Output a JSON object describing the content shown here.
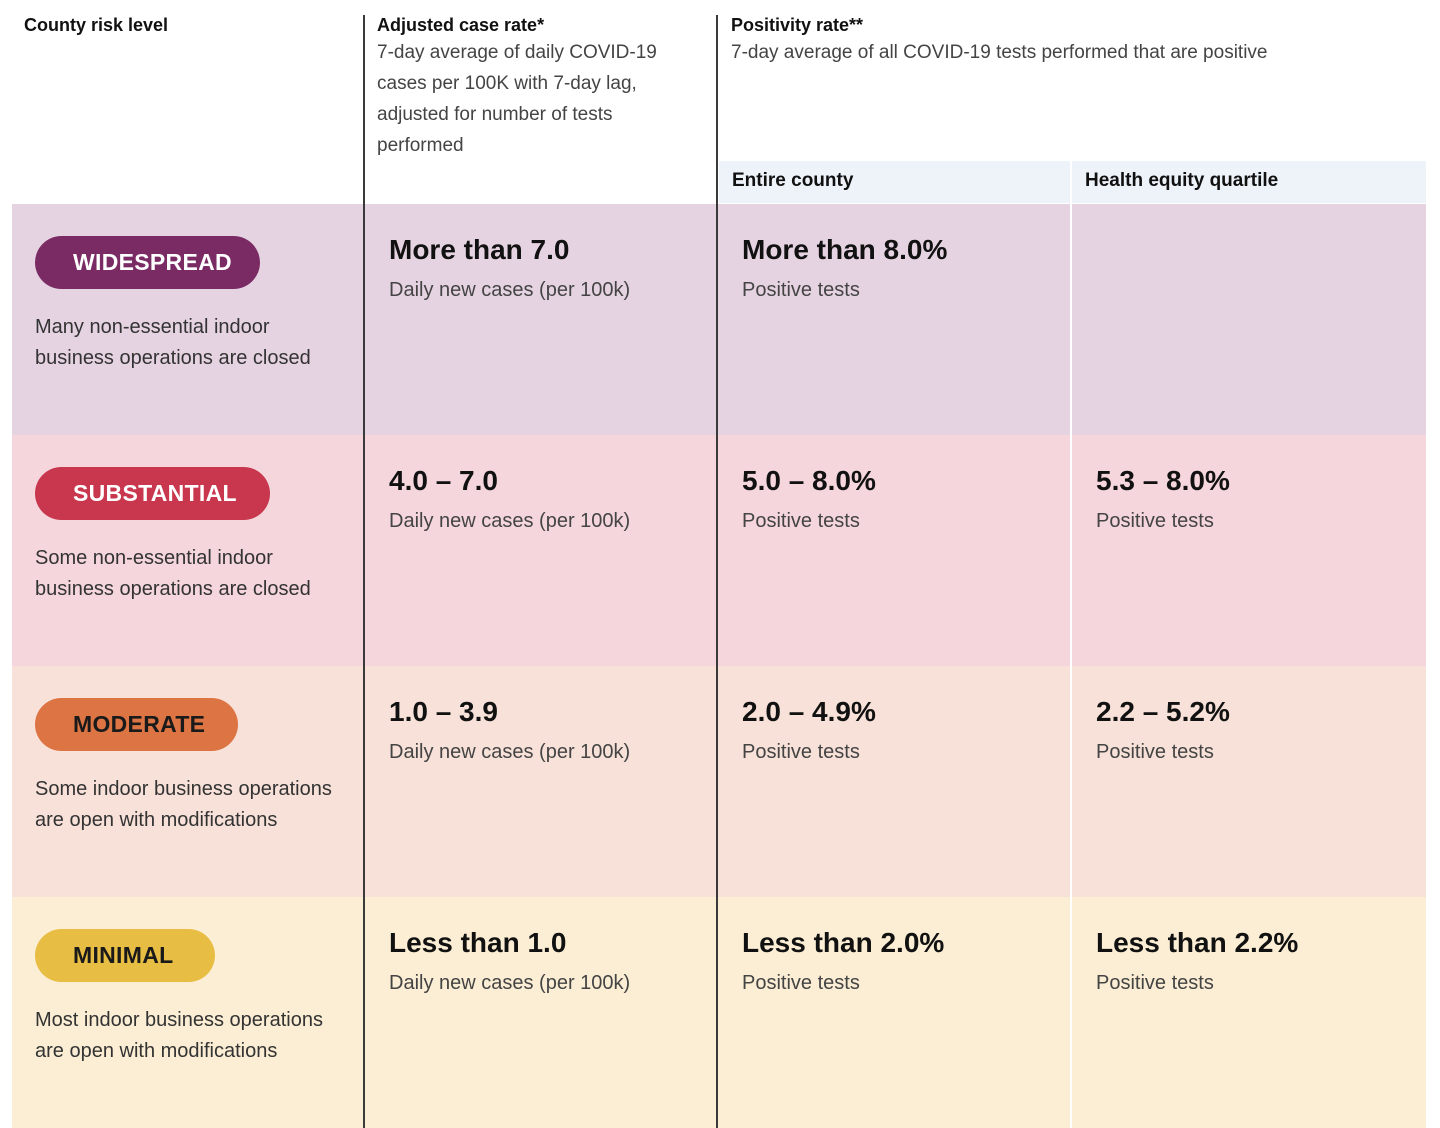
{
  "header": {
    "risk_level": "County risk level",
    "case_rate_title": "Adjusted case rate*",
    "case_rate_desc": [
      "7-day average of daily COVID-19",
      "cases per 100K with 7-day lag,",
      "adjusted for number of tests",
      "performed"
    ],
    "positivity_title": "Positivity rate**",
    "positivity_desc": "7-day average of all COVID-19 tests performed that are positive",
    "entire_county": "Entire county",
    "health_equity": "Health equity quartile"
  },
  "colors": {
    "widespread_band": "#e6d3e2",
    "widespread_badge": "#7b2b64",
    "substantial_band": "#f4d6dc",
    "substantial_badge": "#c8374e",
    "moderate_band": "#f7e1d8",
    "moderate_badge": "#dd7443",
    "minimal_band": "#fbeed4",
    "minimal_badge": "#e8bd43"
  },
  "tiers": [
    {
      "name": "WIDESPREAD",
      "desc": [
        "Many non-essential indoor",
        "business operations are closed"
      ],
      "case_rate": "More than 7.0",
      "case_unit": "Daily new cases (per 100k)",
      "county": "More than 8.0%",
      "county_unit": "Positive tests",
      "equity": "",
      "equity_unit": ""
    },
    {
      "name": "SUBSTANTIAL",
      "desc": [
        "Some non-essential indoor",
        "business operations are closed"
      ],
      "case_rate": "4.0 – 7.0",
      "case_unit": "Daily new cases (per 100k)",
      "county": "5.0 – 8.0%",
      "county_unit": "Positive tests",
      "equity": "5.3 – 8.0%",
      "equity_unit": "Positive tests"
    },
    {
      "name": "MODERATE",
      "desc": [
        "Some indoor business operations",
        "are open with modifications"
      ],
      "case_rate": "1.0 – 3.9",
      "case_unit": "Daily new cases (per 100k)",
      "county": "2.0 – 4.9%",
      "county_unit": "Positive tests",
      "equity": "2.2 – 5.2%",
      "equity_unit": "Positive tests"
    },
    {
      "name": "MINIMAL",
      "desc": [
        "Most indoor business operations",
        "are open with modifications"
      ],
      "case_rate": "Less than 1.0",
      "case_unit": "Daily new cases (per 100k)",
      "county": "Less than 2.0%",
      "county_unit": "Positive tests",
      "equity": "Less than 2.2%",
      "equity_unit": "Positive tests"
    }
  ]
}
